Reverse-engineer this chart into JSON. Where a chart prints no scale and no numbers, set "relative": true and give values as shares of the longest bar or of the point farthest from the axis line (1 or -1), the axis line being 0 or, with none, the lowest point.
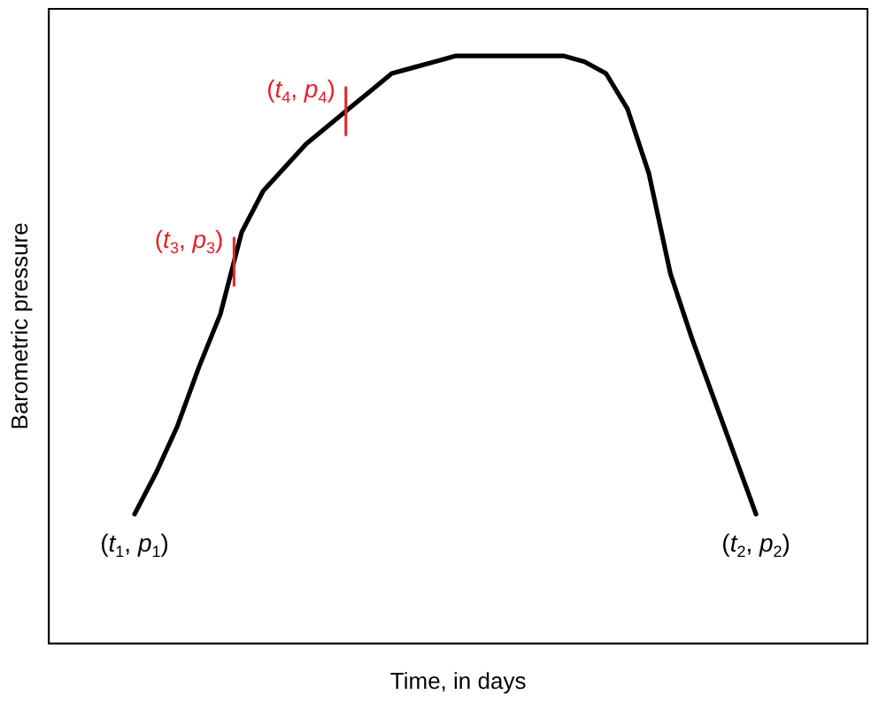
{
  "chart_data": {
    "type": "line",
    "relative": true,
    "xlabel": "Time, in days",
    "ylabel": "Barometric pressure",
    "categories": [
      null,
      null,
      null,
      null,
      null,
      null,
      null,
      null,
      null,
      null,
      null,
      null,
      null,
      null,
      null,
      null,
      null,
      null,
      null,
      null,
      null,
      null,
      null,
      null,
      null,
      null,
      null,
      null,
      null,
      null
    ],
    "series": [
      {
        "color": "#000000",
        "values": [
          0.22,
          0.29,
          0.37,
          0.47,
          0.56,
          0.7,
          0.77,
          0.81,
          0.85,
          0.88,
          0.91,
          0.94,
          0.97,
          0.98,
          0.99,
          1.0,
          1.0,
          1.0,
          1.0,
          1.0,
          1.0,
          0.99,
          0.97,
          0.91,
          0.8,
          0.63,
          0.52,
          0.42,
          0.32,
          0.22
        ]
      }
    ],
    "annotations": [
      {
        "text": "(t$_{1}$, p$_{1}$)",
        "y": 0.22
      },
      {
        "text": "(t$_{2}$, p$_{2}$)",
        "y": 0.22
      },
      "(t$_{3}$, p$_{3}$)",
      "(t$_{4}$, p$_{4}$)"
    ],
    "grid": false,
    "legend": false,
    "marker": "none",
    "line_style": "solid"
  }
}
